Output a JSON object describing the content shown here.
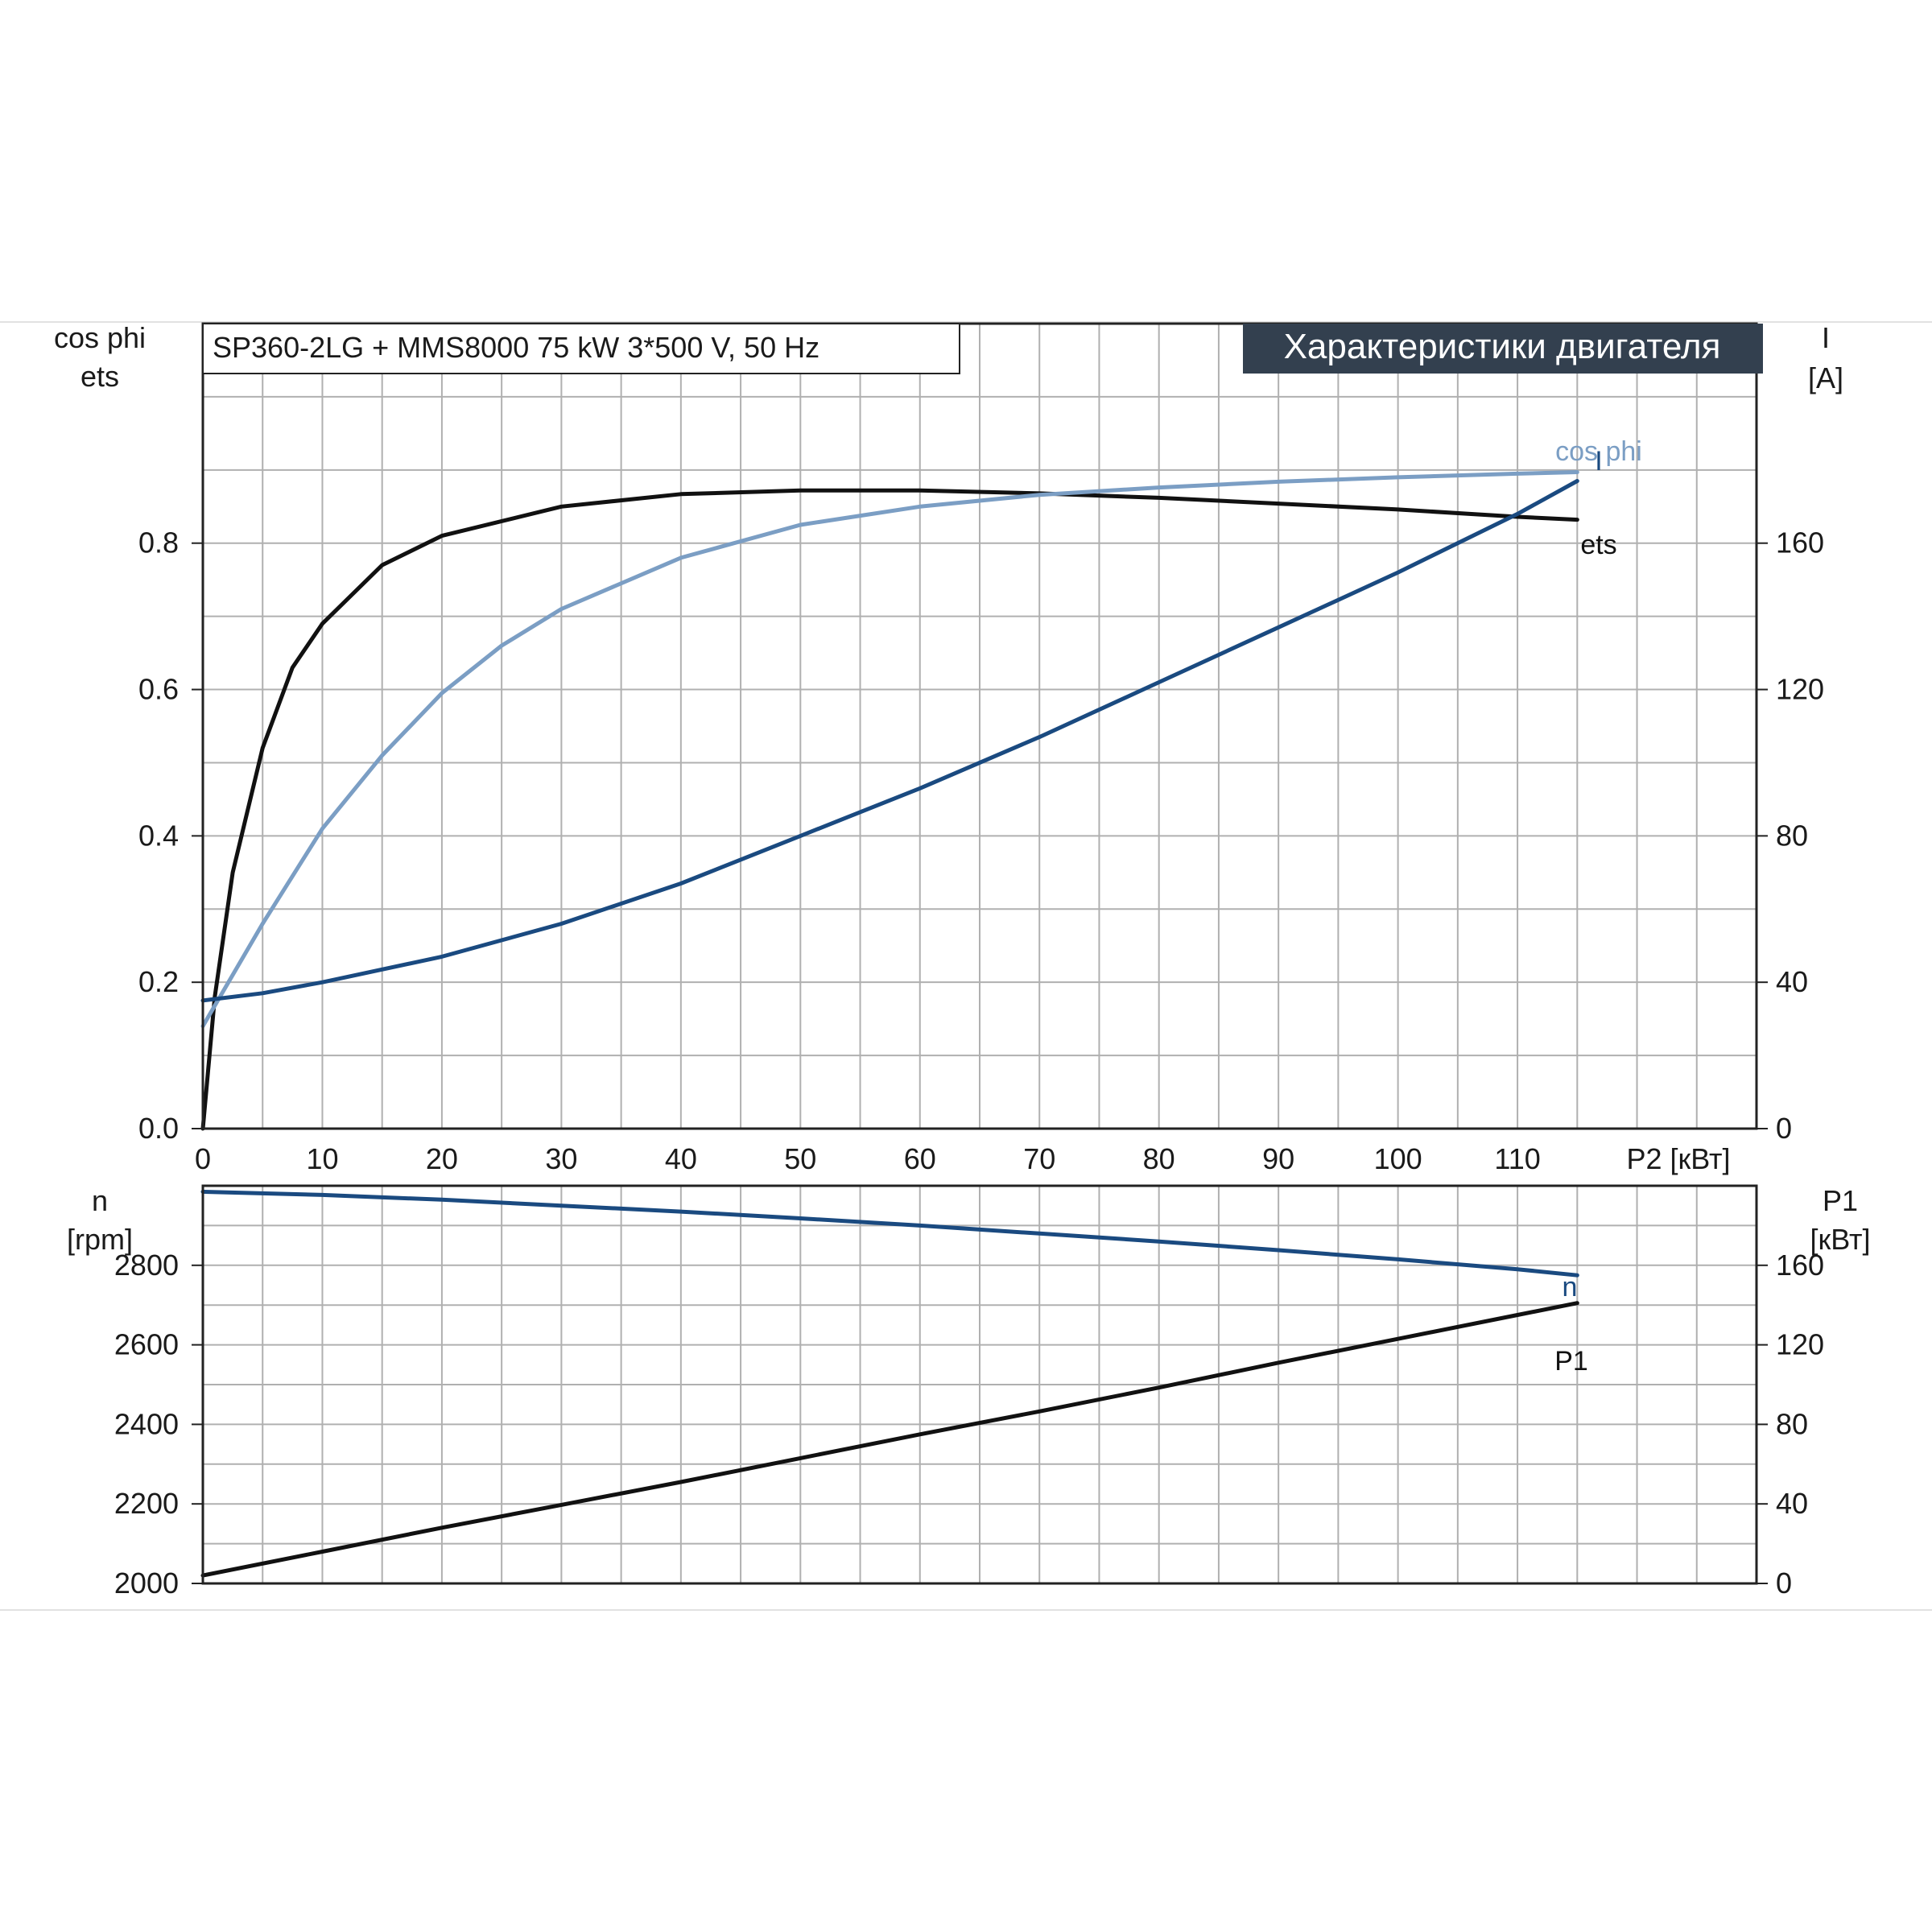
{
  "colors": {
    "black_series": "#111111",
    "dark_blue_series": "#1a4a80",
    "light_blue_series": "#7b9ec4",
    "title_box_bg": "#33404f",
    "title_box_text": "#ffffff",
    "grid": "#b0b0b0"
  },
  "chart_data": [
    {
      "type": "line",
      "subtitle": "SP360-2LG + MMS8000   75 kW   3*500 V, 50 Hz",
      "title": "Характеристики двигателя",
      "xlabel": "P2 [кВт]",
      "ylabel_left": [
        "cos phi",
        "ets"
      ],
      "ylabel_right": [
        "I",
        "[A]"
      ],
      "xlim": [
        0,
        130
      ],
      "ylim_left": [
        0,
        1.1
      ],
      "ylim_right": [
        0,
        220
      ],
      "x_ticks": [
        "0",
        "10",
        "20",
        "30",
        "40",
        "50",
        "60",
        "70",
        "80",
        "90",
        "100",
        "110"
      ],
      "y_left_ticks": [
        "0.0",
        "0.2",
        "0.4",
        "0.6",
        "0.8"
      ],
      "y_right_ticks": [
        "0",
        "40",
        "80",
        "120",
        "160"
      ],
      "grid": true,
      "series": [
        {
          "name": "ets",
          "axis": "left",
          "color": "#111111",
          "x": [
            0,
            1,
            2.5,
            5,
            7.5,
            10,
            15,
            20,
            30,
            40,
            50,
            60,
            70,
            80,
            90,
            100,
            110,
            115
          ],
          "y": [
            0.0,
            0.18,
            0.35,
            0.52,
            0.63,
            0.69,
            0.77,
            0.81,
            0.85,
            0.867,
            0.872,
            0.872,
            0.868,
            0.862,
            0.854,
            0.846,
            0.836,
            0.832
          ]
        },
        {
          "name": "cos phi",
          "axis": "left",
          "color": "#7b9ec4",
          "x": [
            0,
            5,
            10,
            15,
            20,
            25,
            30,
            40,
            50,
            60,
            70,
            80,
            90,
            100,
            110,
            115
          ],
          "y": [
            0.14,
            0.28,
            0.41,
            0.51,
            0.595,
            0.66,
            0.71,
            0.78,
            0.825,
            0.85,
            0.866,
            0.876,
            0.884,
            0.89,
            0.895,
            0.897
          ]
        },
        {
          "name": "I",
          "axis": "right",
          "color": "#1a4a80",
          "x": [
            0,
            5,
            10,
            20,
            30,
            40,
            50,
            60,
            70,
            80,
            90,
            100,
            110,
            115
          ],
          "y": [
            35,
            37,
            40,
            47,
            56,
            67,
            80,
            93,
            107,
            122,
            137,
            152,
            168,
            177
          ]
        }
      ]
    },
    {
      "type": "line",
      "xlim": [
        0,
        130
      ],
      "ylabel_left": [
        "n",
        "[rpm]"
      ],
      "ylabel_right": [
        "P1",
        "[кВт]"
      ],
      "ylim_left": [
        2000,
        3000
      ],
      "ylim_right": [
        0,
        200
      ],
      "y_left_ticks": [
        "2000",
        "2200",
        "2400",
        "2600",
        "2800"
      ],
      "y_right_ticks": [
        "0",
        "40",
        "80",
        "120",
        "160"
      ],
      "grid": true,
      "series": [
        {
          "name": "n",
          "axis": "left",
          "color": "#1a4a80",
          "x": [
            0,
            10,
            20,
            30,
            40,
            50,
            60,
            70,
            80,
            90,
            100,
            110,
            115
          ],
          "y": [
            2985,
            2977,
            2965,
            2950,
            2935,
            2918,
            2900,
            2880,
            2860,
            2838,
            2815,
            2790,
            2775
          ]
        },
        {
          "name": "P1",
          "axis": "right",
          "color": "#111111",
          "x": [
            0,
            10,
            20,
            30,
            40,
            50,
            60,
            70,
            80,
            90,
            100,
            110,
            115
          ],
          "y": [
            4,
            16,
            28,
            39.5,
            51,
            63,
            75,
            86.5,
            98.5,
            111,
            123,
            135,
            141
          ]
        }
      ]
    }
  ]
}
